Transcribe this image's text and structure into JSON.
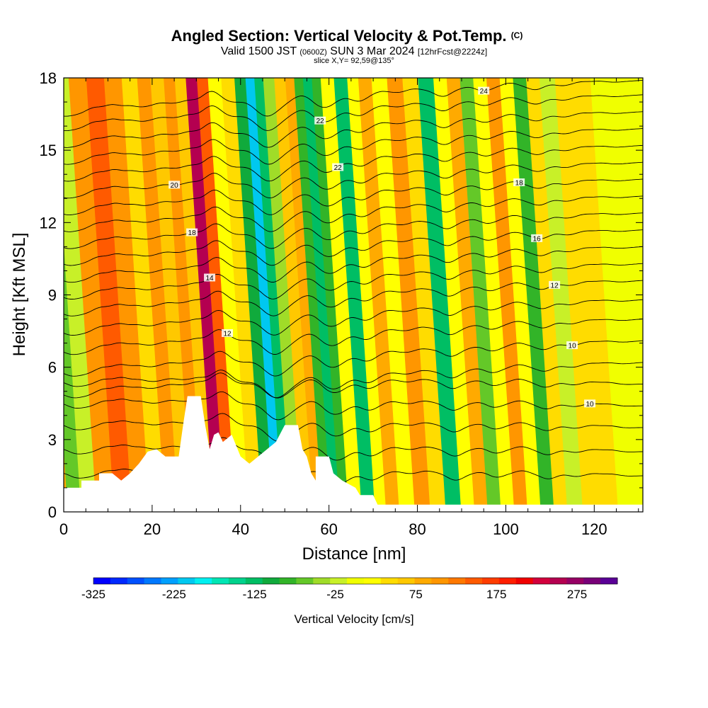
{
  "header": {
    "title_main": "Angled Section: Vertical Velocity & Pot.Temp.",
    "title_mark": "(C)",
    "valid_prefix": "Valid 1500 JST",
    "valid_utc": "(0600Z)",
    "valid_date": "SUN 3 Mar 2024",
    "valid_fcst": "[12hrFcst@2224z]",
    "slice": "slice X,Y= 92,59@135°"
  },
  "chart_data": {
    "type": "heatmap",
    "xlabel": "Distance [nm]",
    "ylabel": "Height [Kft MSL]",
    "xlim": [
      0,
      131
    ],
    "ylim": [
      0,
      18
    ],
    "x_ticks": [
      "0",
      "20",
      "40",
      "60",
      "80",
      "100",
      "120"
    ],
    "y_ticks": [
      "0",
      "3",
      "6",
      "9",
      "12",
      "15",
      "18"
    ],
    "colorbar": {
      "label": "Vertical Velocity [cm/s]",
      "tick_labels": [
        "-325",
        "-225",
        "-125",
        "-25",
        "75",
        "175",
        "275"
      ],
      "range": [
        -325,
        325
      ],
      "colors": [
        "#0000ff",
        "#0028ff",
        "#0050ff",
        "#0078ff",
        "#00a0ff",
        "#00c8f0",
        "#00f0f0",
        "#00e6b4",
        "#00d28c",
        "#00be64",
        "#10aa3c",
        "#32b428",
        "#64c828",
        "#a0dc28",
        "#c8f028",
        "#f0ff00",
        "#ffff00",
        "#ffdc00",
        "#ffc800",
        "#ffaa00",
        "#ff9600",
        "#ff7800",
        "#ff5a00",
        "#ff3c00",
        "#ff1e00",
        "#f00000",
        "#d2003c",
        "#b40050",
        "#960064",
        "#780078",
        "#5a0096"
      ]
    },
    "velocity_bands": [
      {
        "x": 0,
        "value": 75
      },
      {
        "x": 3,
        "value": -60
      },
      {
        "x": 6,
        "value": -25
      },
      {
        "x": 10,
        "value": 110
      },
      {
        "x": 14,
        "value": 150
      },
      {
        "x": 18,
        "value": 100
      },
      {
        "x": 22,
        "value": 40
      },
      {
        "x": 25,
        "value": 110
      },
      {
        "x": 28,
        "value": 60
      },
      {
        "x": 31,
        "value": 110
      },
      {
        "x": 33,
        "value": 60
      },
      {
        "x": 36,
        "value": 250
      },
      {
        "x": 38,
        "value": 140
      },
      {
        "x": 41,
        "value": 20
      },
      {
        "x": 44,
        "value": 40
      },
      {
        "x": 47,
        "value": -100
      },
      {
        "x": 49,
        "value": -220
      },
      {
        "x": 51,
        "value": -130
      },
      {
        "x": 53,
        "value": -40
      },
      {
        "x": 56,
        "value": 60
      },
      {
        "x": 58,
        "value": 90
      },
      {
        "x": 60,
        "value": -80
      },
      {
        "x": 62,
        "value": -130
      },
      {
        "x": 64,
        "value": -90
      },
      {
        "x": 66,
        "value": 30
      },
      {
        "x": 70,
        "value": -120
      },
      {
        "x": 72,
        "value": 20
      },
      {
        "x": 75,
        "value": 90
      },
      {
        "x": 78,
        "value": 30
      },
      {
        "x": 82,
        "value": 100
      },
      {
        "x": 85,
        "value": 50
      },
      {
        "x": 89,
        "value": -120
      },
      {
        "x": 92,
        "value": 30
      },
      {
        "x": 95,
        "value": 80
      },
      {
        "x": 98,
        "value": -60
      },
      {
        "x": 101,
        "value": 30
      },
      {
        "x": 104,
        "value": 110
      },
      {
        "x": 107,
        "value": 20
      },
      {
        "x": 110,
        "value": -90
      },
      {
        "x": 113,
        "value": 40
      },
      {
        "x": 116,
        "value": -30
      },
      {
        "x": 120,
        "value": 50
      },
      {
        "x": 124,
        "value": 40
      },
      {
        "x": 128,
        "value": -10
      },
      {
        "x": 131,
        "value": 0
      }
    ],
    "terrain": [
      {
        "x": 0,
        "h": 1.0
      },
      {
        "x": 4,
        "h": 1.0
      },
      {
        "x": 4,
        "h": 1.3
      },
      {
        "x": 8,
        "h": 1.3
      },
      {
        "x": 8,
        "h": 1.6
      },
      {
        "x": 11,
        "h": 1.6
      },
      {
        "x": 13,
        "h": 1.3
      },
      {
        "x": 15,
        "h": 1.6
      },
      {
        "x": 17,
        "h": 2.0
      },
      {
        "x": 19,
        "h": 2.5
      },
      {
        "x": 21,
        "h": 2.6
      },
      {
        "x": 23,
        "h": 2.3
      },
      {
        "x": 26,
        "h": 2.3
      },
      {
        "x": 27,
        "h": 3.6
      },
      {
        "x": 28,
        "h": 4.8
      },
      {
        "x": 31,
        "h": 4.8
      },
      {
        "x": 32,
        "h": 3.6
      },
      {
        "x": 33,
        "h": 2.6
      },
      {
        "x": 34,
        "h": 3.2
      },
      {
        "x": 35,
        "h": 3.3
      },
      {
        "x": 36,
        "h": 2.9
      },
      {
        "x": 38,
        "h": 3.2
      },
      {
        "x": 40,
        "h": 2.3
      },
      {
        "x": 42,
        "h": 2.0
      },
      {
        "x": 44,
        "h": 2.3
      },
      {
        "x": 46,
        "h": 2.6
      },
      {
        "x": 48,
        "h": 2.9
      },
      {
        "x": 50,
        "h": 3.6
      },
      {
        "x": 53,
        "h": 3.6
      },
      {
        "x": 54,
        "h": 2.6
      },
      {
        "x": 55,
        "h": 2.3
      },
      {
        "x": 56,
        "h": 1.6
      },
      {
        "x": 57,
        "h": 1.3
      },
      {
        "x": 57,
        "h": 2.3
      },
      {
        "x": 60,
        "h": 2.3
      },
      {
        "x": 61,
        "h": 1.6
      },
      {
        "x": 63,
        "h": 1.3
      },
      {
        "x": 66,
        "h": 1.0
      },
      {
        "x": 67,
        "h": 0.7
      },
      {
        "x": 70,
        "h": 0.7
      },
      {
        "x": 71,
        "h": 0.3
      },
      {
        "x": 131,
        "h": 0.3
      }
    ],
    "theta_levels": [
      {
        "y": 1.5,
        "label": ""
      },
      {
        "y": 2.5,
        "label": ""
      },
      {
        "y": 3.5,
        "label": ""
      },
      {
        "y": 4.4,
        "label": "10"
      },
      {
        "y": 5.3,
        "label": ""
      },
      {
        "y": 6.2,
        "label": ""
      },
      {
        "y": 7.1,
        "label": "10"
      },
      {
        "y": 8.0,
        "label": "12"
      },
      {
        "y": 8.8,
        "label": ""
      },
      {
        "y": 9.6,
        "label": "12"
      },
      {
        "y": 10.3,
        "label": "14"
      },
      {
        "y": 11.0,
        "label": ""
      },
      {
        "y": 11.7,
        "label": "16"
      },
      {
        "y": 12.4,
        "label": "18"
      },
      {
        "y": 13.1,
        "label": ""
      },
      {
        "y": 13.8,
        "label": "18"
      },
      {
        "y": 14.5,
        "label": "20"
      },
      {
        "y": 15.2,
        "label": "22"
      },
      {
        "y": 15.9,
        "label": ""
      },
      {
        "y": 16.6,
        "label": ""
      },
      {
        "y": 17.3,
        "label": "22"
      },
      {
        "y": 17.9,
        "label": "24"
      }
    ]
  }
}
